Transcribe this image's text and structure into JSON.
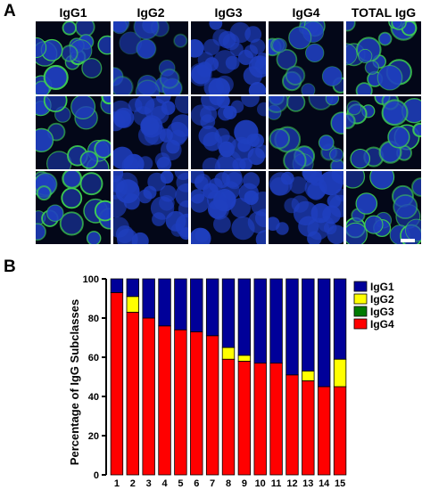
{
  "figure": {
    "panel_a_label": "A",
    "panel_b_label": "B",
    "column_headers": [
      "IgG1",
      "IgG2",
      "IgG3",
      "IgG4",
      "TOTAL IgG"
    ],
    "cell_membrane_stain": [
      [
        "strong",
        "weak",
        "none",
        "medium",
        "strong"
      ],
      [
        "strong",
        "none",
        "none",
        "medium",
        "strong"
      ],
      [
        "strong",
        "none",
        "none",
        "none",
        "strong"
      ]
    ],
    "colors": {
      "nucleus": "#1f3fbf",
      "background": "#030718",
      "membrane": "#3fd24f"
    }
  },
  "chart_data": {
    "type": "bar",
    "stacked": true,
    "ylabel": "Percentage of IgG Subclasses",
    "xlabel": "",
    "ylim": [
      0,
      100
    ],
    "yticks": [
      0,
      20,
      40,
      60,
      80,
      100
    ],
    "categories": [
      "1",
      "2",
      "3",
      "4",
      "5",
      "6",
      "7",
      "8",
      "9",
      "10",
      "11",
      "12",
      "13",
      "14",
      "15"
    ],
    "legend_position": "right",
    "series": [
      {
        "name": "IgG4",
        "color": "#ff0000",
        "values": [
          93,
          83,
          80,
          76,
          74,
          73,
          71,
          59,
          58,
          57,
          57,
          51,
          48,
          45,
          45
        ]
      },
      {
        "name": "IgG3",
        "color": "#007a00",
        "values": [
          0,
          0,
          0,
          0,
          0,
          0,
          0,
          0,
          0,
          0,
          0,
          0,
          0,
          0,
          0
        ]
      },
      {
        "name": "IgG2",
        "color": "#ffff00",
        "values": [
          0,
          8,
          0,
          0,
          0,
          0,
          0,
          6,
          3,
          0,
          0,
          0,
          5,
          0,
          14
        ]
      },
      {
        "name": "IgG1",
        "color": "#000099",
        "values": [
          7,
          9,
          20,
          24,
          26,
          27,
          29,
          35,
          39,
          43,
          43,
          49,
          47,
          55,
          41
        ]
      }
    ],
    "legend_order": [
      "IgG1",
      "IgG2",
      "IgG3",
      "IgG4"
    ]
  }
}
